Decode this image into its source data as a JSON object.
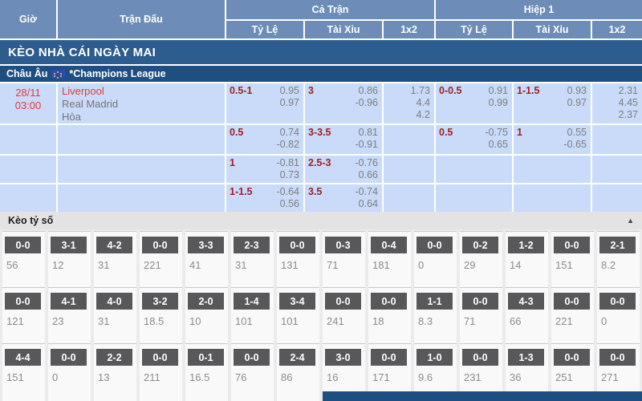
{
  "header": {
    "time": "Giờ",
    "match": "Trận Đấu",
    "full_match": "Cả Trận",
    "first_half": "Hiệp 1",
    "odds": "Tỷ Lệ",
    "over_under": "Tài Xỉu",
    "one_x_two": "1x2"
  },
  "banner": {
    "title": "KÈO NHÀ CÁI NGÀY MAI"
  },
  "league": {
    "region": "Châu Âu",
    "flag_icon": "eu-flag",
    "name": "*Champions League"
  },
  "match": {
    "date": "28/11",
    "time": "03:00",
    "teams": [
      "Liverpool",
      "Real Madrid"
    ],
    "draw": "Hòa"
  },
  "odds_rows": [
    {
      "ft_hdp": "0.5-1",
      "ft_hdp_odds": [
        "0.95",
        "0.97"
      ],
      "ft_ou": "3",
      "ft_ou_odds": [
        "0.86",
        "-0.96"
      ],
      "ft_1x2": [
        "1.73",
        "4.4",
        "4.2"
      ],
      "h1_hdp": "0-0.5",
      "h1_hdp_odds": [
        "0.91",
        "0.99"
      ],
      "h1_ou": "1-1.5",
      "h1_ou_odds": [
        "0.93",
        "0.97"
      ],
      "h1_1x2": [
        "2.31",
        "4.45",
        "2.37"
      ]
    },
    {
      "ft_hdp": "0.5",
      "ft_hdp_odds": [
        "0.74",
        "-0.82"
      ],
      "ft_ou": "3-3.5",
      "ft_ou_odds": [
        "0.81",
        "-0.91"
      ],
      "ft_1x2": [],
      "h1_hdp": "0.5",
      "h1_hdp_odds": [
        "-0.75",
        "0.65"
      ],
      "h1_ou": "1",
      "h1_ou_odds": [
        "0.55",
        "-0.65"
      ],
      "h1_1x2": []
    },
    {
      "ft_hdp": "1",
      "ft_hdp_odds": [
        "-0.81",
        "0.73"
      ],
      "ft_ou": "2.5-3",
      "ft_ou_odds": [
        "-0.76",
        "0.66"
      ],
      "ft_1x2": [],
      "h1_hdp": "",
      "h1_hdp_odds": [],
      "h1_ou": "",
      "h1_ou_odds": [],
      "h1_1x2": []
    },
    {
      "ft_hdp": "1-1.5",
      "ft_hdp_odds": [
        "-0.64",
        "0.56"
      ],
      "ft_ou": "3.5",
      "ft_ou_odds": [
        "-0.74",
        "0.64"
      ],
      "ft_1x2": [],
      "h1_hdp": "",
      "h1_hdp_odds": [],
      "h1_ou": "",
      "h1_ou_odds": [],
      "h1_1x2": []
    }
  ],
  "score_section": {
    "title": "Kèo tỷ số",
    "collapse_icon": "▲",
    "rows": [
      {
        "scores": [
          "0-0",
          "3-1",
          "4-2",
          "0-0",
          "3-3",
          "2-3",
          "0-0",
          "0-3",
          "0-4",
          "0-0",
          "0-2",
          "1-2",
          "0-0",
          "2-1"
        ],
        "values": [
          "56",
          "12",
          "31",
          "221",
          "41",
          "31",
          "131",
          "71",
          "181",
          "0",
          "29",
          "14",
          "151",
          "8.2"
        ]
      },
      {
        "scores": [
          "0-0",
          "4-1",
          "4-0",
          "3-2",
          "2-0",
          "1-4",
          "3-4",
          "0-0",
          "0-0",
          "1-1",
          "0-0",
          "4-3",
          "0-0",
          "0-0"
        ],
        "values": [
          "121",
          "23",
          "31",
          "18.5",
          "10",
          "101",
          "101",
          "241",
          "18",
          "8.3",
          "71",
          "66",
          "221",
          "0"
        ]
      },
      {
        "scores": [
          "4-4",
          "0-0",
          "2-2",
          "0-0",
          "0-1",
          "0-0",
          "2-4",
          "3-0",
          "0-0",
          "1-0",
          "0-0",
          "1-3",
          "0-0",
          "0-0"
        ],
        "values": [
          "151",
          "0",
          "13",
          "211",
          "16.5",
          "76",
          "86",
          "16",
          "171",
          "9.6",
          "231",
          "36",
          "251",
          "271"
        ]
      }
    ]
  },
  "colors": {
    "header_blue": "#6d8cb7",
    "banner_navy": "#2d5c8e",
    "league_navy": "#1f4e80",
    "row_light_blue": "#c9dbf9",
    "team_red": "#e03c3c",
    "handicap_maroon": "#9d2025",
    "score_box_gray": "#58585a"
  }
}
